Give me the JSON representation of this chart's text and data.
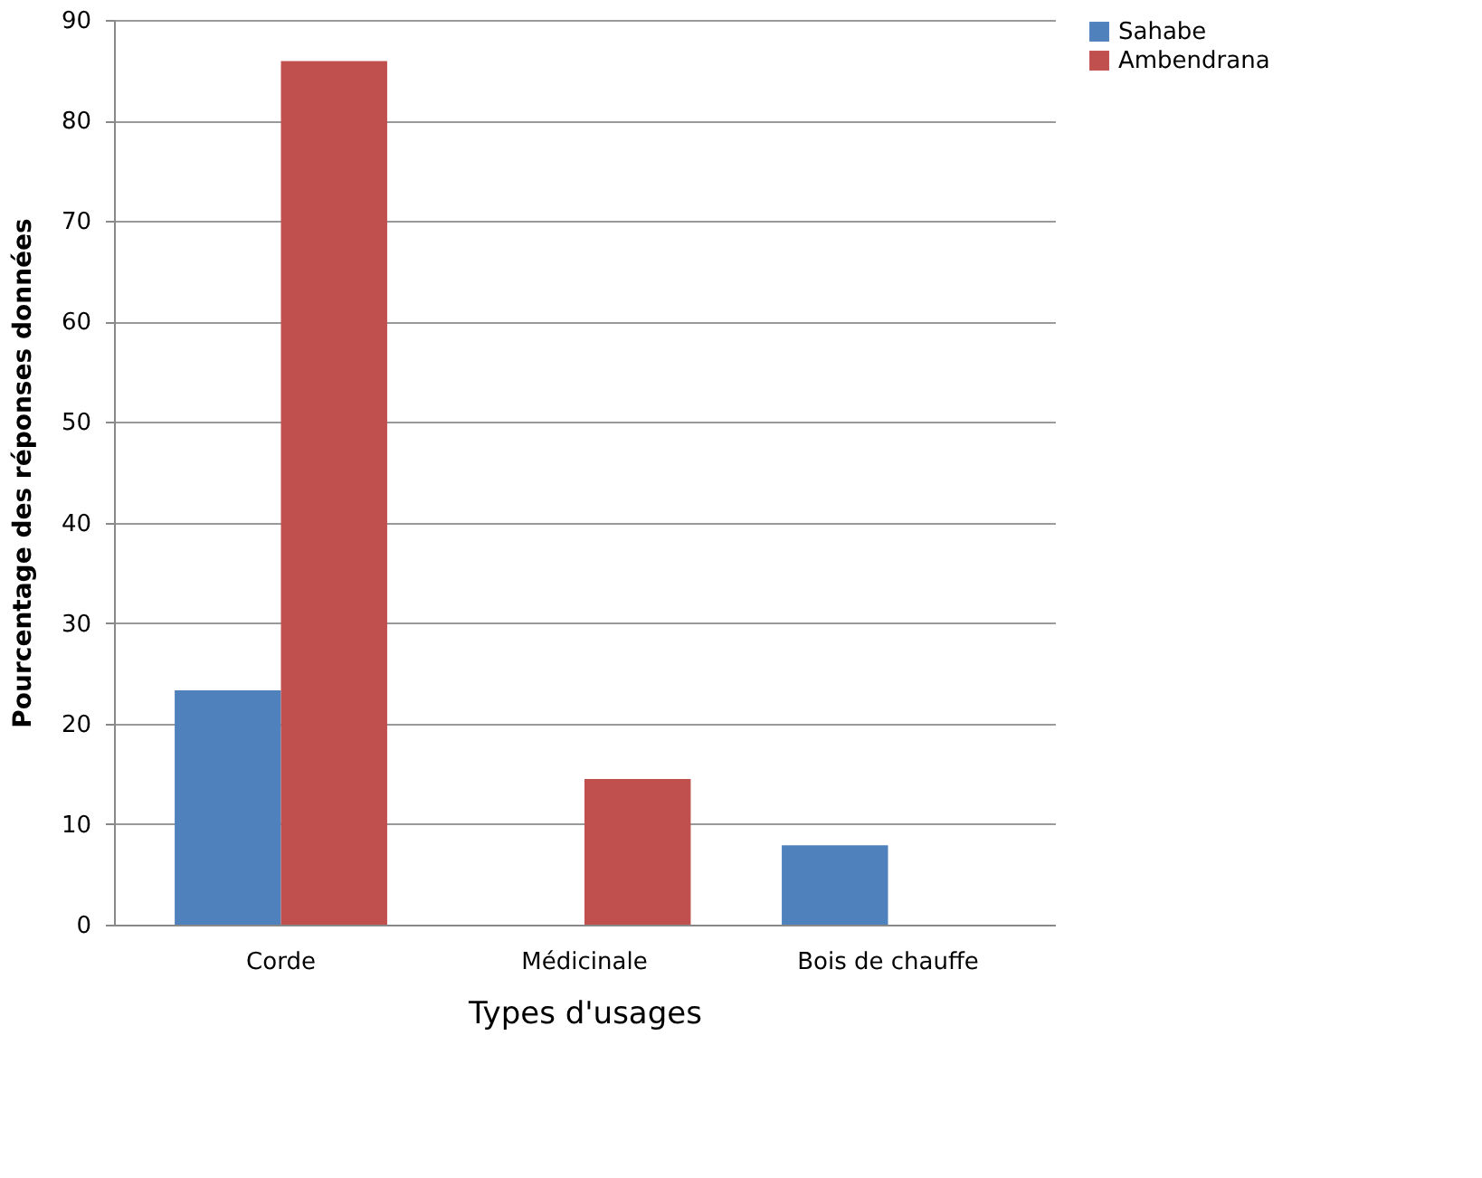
{
  "chart_data": {
    "type": "bar",
    "xlabel": "Types d'usages",
    "ylabel": "Pourcentage des réponses données",
    "categories": [
      "Corde",
      "Médicinale",
      "Bois de chauffe"
    ],
    "series": [
      {
        "name": "Sahabe",
        "color": "#4f81bd",
        "values": [
          23.3,
          null,
          7.9
        ]
      },
      {
        "name": "Ambendrana",
        "color": "#c0504d",
        "values": [
          85.9,
          14.5,
          null
        ]
      }
    ],
    "ylim": [
      0,
      90
    ],
    "yticks": [
      0,
      10,
      20,
      30,
      40,
      50,
      60,
      70,
      80,
      90
    ],
    "grid": "y",
    "legend": "right"
  }
}
